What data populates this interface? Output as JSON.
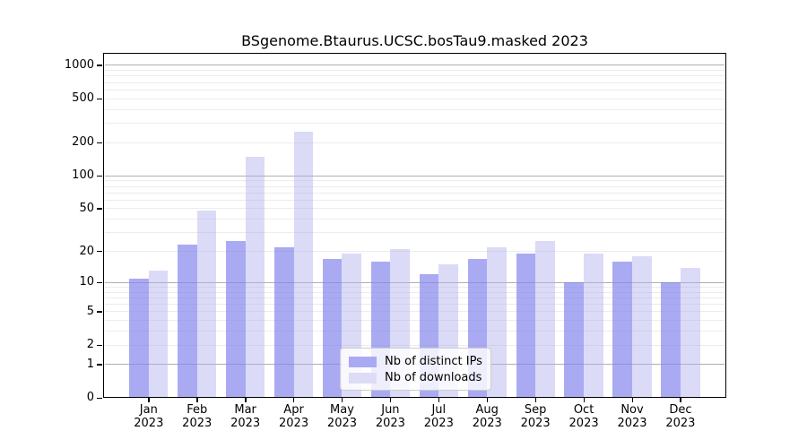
{
  "title": "BSgenome.Btaurus.UCSC.bosTau9.masked 2023",
  "legend": {
    "items": [
      {
        "label": "Nb of distinct IPs",
        "color": "#a9a9f4"
      },
      {
        "label": "Nb of downloads",
        "color": "#dcdcf7"
      }
    ]
  },
  "chart_data": {
    "type": "bar",
    "title": "BSgenome.Btaurus.UCSC.bosTau9.masked 2023",
    "categories": [
      "Jan 2023",
      "Feb 2023",
      "Mar 2023",
      "Apr 2023",
      "May 2023",
      "Jun 2023",
      "Jul 2023",
      "Aug 2023",
      "Sep 2023",
      "Oct 2023",
      "Nov 2023",
      "Dec 2023"
    ],
    "series": [
      {
        "name": "Nb of distinct IPs",
        "color": "#a9a9f4",
        "fill_rgba": "rgba(134,134,238,0.7)",
        "values": [
          11,
          23,
          25,
          22,
          17,
          16,
          12,
          17,
          19,
          10,
          16,
          10
        ]
      },
      {
        "name": "Nb of downloads",
        "color": "#dcdcf7",
        "fill_rgba": "rgba(175,175,237,0.45)",
        "values": [
          13,
          48,
          150,
          250,
          19,
          21,
          15,
          22,
          25,
          19,
          18,
          14
        ]
      }
    ],
    "yscale": "log1p",
    "yticks": [
      0,
      1,
      2,
      5,
      10,
      20,
      50,
      100,
      200,
      500,
      1000
    ],
    "ylim": [
      0,
      1100
    ],
    "xlabel": "",
    "ylabel": "",
    "grid": "horizontal",
    "legend_position": "inside-bottom-center",
    "gridline_major_color": "#b0b0b0",
    "gridline_minor_color": "#ececec"
  }
}
